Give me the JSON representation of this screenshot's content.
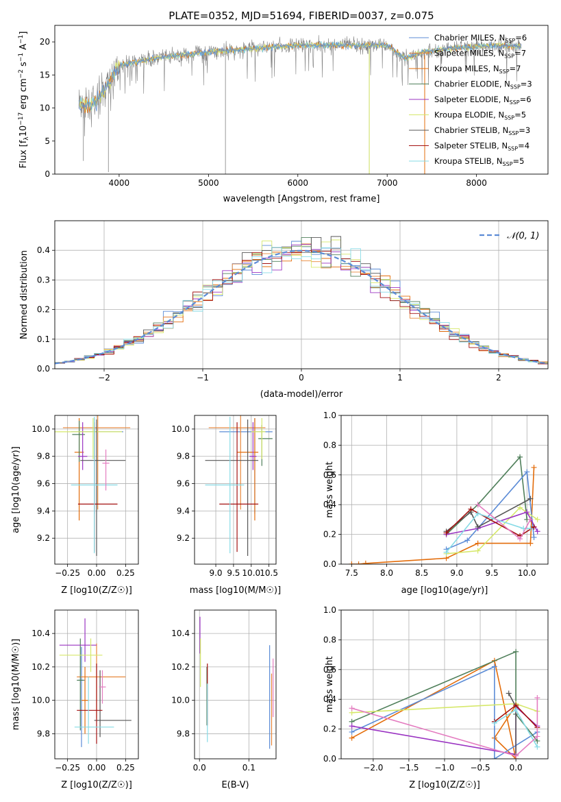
{
  "title": "PLATE=0352, MJD=51694, FIBERID=0037, z=0.075",
  "colors": {
    "Chabrier MILES": "#5b8bd6",
    "Salpeter MILES": "#e8873a",
    "Kroupa MILES": "#e36c0a",
    "Chabrier ELODIE": "#4f7f5a",
    "Salpeter ELODIE": "#9a33c2",
    "Kroupa ELODIE": "#d6e86a",
    "Chabrier STELIB": "#555555",
    "Salpeter STELIB": "#a31010",
    "Kroupa STELIB": "#86dbe6",
    "data": "#808080",
    "pink": "#e47cc0"
  },
  "chart_data": [
    {
      "id": "spectrum",
      "type": "line",
      "xlabel": "wavelength [Angstrom, rest frame]",
      "ylabel": "Flux [f_λ 10^-17 erg cm^-2 s^-1 A^-1]",
      "xlim": [
        3280,
        8800
      ],
      "ylim": [
        0,
        22.5
      ],
      "xticks": [
        4000,
        5000,
        6000,
        7000,
        8000
      ],
      "yticks": [
        0,
        5,
        10,
        15,
        20
      ],
      "legend_position": "right",
      "legend": [
        {
          "name": "Chabrier MILES",
          "nssp": "6"
        },
        {
          "name": "Salpeter MILES",
          "nssp": "7"
        },
        {
          "name": "Kroupa MILES",
          "nssp": "7"
        },
        {
          "name": "Chabrier ELODIE",
          "nssp": "3"
        },
        {
          "name": "Salpeter ELODIE",
          "nssp": "6"
        },
        {
          "name": "Kroupa ELODIE",
          "nssp": "5"
        },
        {
          "name": "Chabrier STELIB",
          "nssp": "3"
        },
        {
          "name": "Salpeter STELIB",
          "nssp": "4"
        },
        {
          "name": "Kroupa STELIB",
          "nssp": "5"
        }
      ],
      "continuum": [
        [
          3550,
          10.5
        ],
        [
          3700,
          10.5
        ],
        [
          3850,
          13
        ],
        [
          4000,
          16.5
        ],
        [
          4200,
          17
        ],
        [
          4400,
          17.5
        ],
        [
          4700,
          18
        ],
        [
          5000,
          18.5
        ],
        [
          5500,
          19
        ],
        [
          6000,
          19.5
        ],
        [
          6500,
          19.5
        ],
        [
          7000,
          19.5
        ],
        [
          7200,
          17.5
        ],
        [
          7400,
          18.5
        ],
        [
          7700,
          19
        ],
        [
          8200,
          19.5
        ],
        [
          8500,
          19.3
        ]
      ],
      "spikes": [
        [
          5190,
          0
        ],
        [
          6800,
          0
        ],
        [
          7420,
          0
        ],
        [
          3880,
          0.3
        ],
        [
          3600,
          2
        ]
      ]
    },
    {
      "id": "residuals",
      "type": "histogram",
      "xlabel": "(data-model)/error",
      "ylabel": "Normed distribution",
      "xlim": [
        -2.5,
        2.5
      ],
      "ylim": [
        0,
        0.5
      ],
      "xticks": [
        -2,
        -1,
        0,
        1,
        2
      ],
      "yticks": [
        0.0,
        0.1,
        0.2,
        0.3,
        0.4
      ],
      "legend_position": "top-right",
      "gaussian_label": "N(0,1)",
      "bin_width": 0.1
    },
    {
      "id": "age-vs-Z",
      "type": "errorbar",
      "xlabel": "Z [log10(Z/Z☉)]",
      "ylabel": "age [log10(age/yr)]",
      "xlim": [
        -0.36,
        0.36
      ],
      "ylim": [
        9.01,
        10.1
      ],
      "xticks": [
        -0.25,
        0.0,
        0.25
      ],
      "yticks": [
        9.2,
        9.4,
        9.6,
        9.8,
        10.0
      ],
      "points": [
        {
          "series": "Chabrier MILES",
          "x": -0.02,
          "y": 9.98,
          "xerr": [
            0.2,
            0.25
          ],
          "yerr": [
            0.6,
            0.1
          ]
        },
        {
          "series": "Salpeter MILES",
          "x": 0.01,
          "y": 10.01,
          "xerr": [
            0.3,
            0.28
          ],
          "yerr": [
            0.6,
            0.1
          ]
        },
        {
          "series": "Kroupa MILES",
          "x": -0.15,
          "y": 9.83,
          "xerr": [
            0.04,
            0.04
          ],
          "yerr": [
            0.5,
            0.25
          ]
        },
        {
          "series": "Chabrier ELODIE",
          "x": -0.15,
          "y": 9.96,
          "xerr": [
            0.06,
            0.05
          ],
          "yerr": [
            0.2,
            0.1
          ]
        },
        {
          "series": "Salpeter ELODIE",
          "x": -0.12,
          "y": 9.8,
          "xerr": [
            0.04,
            0.04
          ],
          "yerr": [
            0.1,
            0.25
          ]
        },
        {
          "series": "Kroupa ELODIE",
          "x": -0.03,
          "y": 9.98,
          "xerr": [
            0.36,
            0.25
          ],
          "yerr": [
            0.2,
            0.1
          ]
        },
        {
          "series": "Chabrier STELIB",
          "x": 0.0,
          "y": 9.77,
          "xerr": [
            0.14,
            0.25
          ],
          "yerr": [
            0.7,
            0.3
          ]
        },
        {
          "series": "Salpeter STELIB",
          "x": -0.02,
          "y": 9.45,
          "xerr": [
            0.14,
            0.2
          ],
          "yerr": [
            0.35,
            0.6
          ]
        },
        {
          "series": "Kroupa STELIB",
          "x": -0.02,
          "y": 9.59,
          "xerr": [
            0.2,
            0.2
          ],
          "yerr": [
            0.5,
            0.5
          ]
        },
        {
          "series": "pink",
          "x": 0.08,
          "y": 9.75,
          "xerr": [
            0.03,
            0.03
          ],
          "yerr": [
            0.2,
            0.1
          ]
        }
      ]
    },
    {
      "id": "age-vs-mass",
      "type": "errorbar",
      "xlabel": "mass [log10(M/M☉)]",
      "ylabel": "",
      "xlim": [
        8.4,
        10.7
      ],
      "ylim": [
        9.01,
        10.1
      ],
      "xticks": [
        9.0,
        9.5,
        10.0,
        10.5
      ],
      "yticks": [
        9.2,
        9.4,
        9.6,
        9.8,
        10.0
      ],
      "points": [
        {
          "series": "Chabrier MILES",
          "x": 10.1,
          "y": 9.98,
          "xerr": [
            1.0,
            0.5
          ],
          "yerr": [
            0.6,
            0.1
          ]
        },
        {
          "series": "Salpeter MILES",
          "x": 9.7,
          "y": 10.01,
          "xerr": [
            0.9,
            0.7
          ],
          "yerr": [
            0.6,
            0.1
          ]
        },
        {
          "series": "Kroupa MILES",
          "x": 10.1,
          "y": 9.83,
          "xerr": [
            0.5,
            0.1
          ],
          "yerr": [
            0.5,
            0.25
          ]
        },
        {
          "series": "Chabrier ELODIE",
          "x": 10.3,
          "y": 9.93,
          "xerr": [
            0.1,
            0.3
          ],
          "yerr": [
            0.2,
            0.1
          ]
        },
        {
          "series": "Salpeter ELODIE",
          "x": 10.05,
          "y": 9.8,
          "xerr": [
            0.1,
            0.1
          ],
          "yerr": [
            0.1,
            0.25
          ]
        },
        {
          "series": "Kroupa ELODIE",
          "x": 10.3,
          "y": 9.98,
          "xerr": [
            0.3,
            0.1
          ],
          "yerr": [
            0.2,
            0.1
          ]
        },
        {
          "series": "Chabrier STELIB",
          "x": 9.9,
          "y": 9.77,
          "xerr": [
            1.2,
            0.3
          ],
          "yerr": [
            0.7,
            0.3
          ]
        },
        {
          "series": "Salpeter STELIB",
          "x": 9.6,
          "y": 9.45,
          "xerr": [
            0.5,
            0.6
          ],
          "yerr": [
            0.35,
            0.6
          ]
        },
        {
          "series": "Kroupa STELIB",
          "x": 9.4,
          "y": 9.59,
          "xerr": [
            0.7,
            0.4
          ],
          "yerr": [
            0.5,
            0.5
          ]
        }
      ]
    },
    {
      "id": "weight-vs-age",
      "type": "line",
      "xlabel": "age [log10(age/yr)]",
      "ylabel": "mass weight",
      "xlim": [
        7.35,
        10.3
      ],
      "ylim": [
        0,
        1
      ],
      "xticks": [
        7.5,
        8.0,
        8.5,
        9.0,
        9.5,
        10.0
      ],
      "yticks": [
        0.0,
        0.2,
        0.4,
        0.6,
        0.8,
        1.0
      ],
      "series": [
        {
          "name": "Kroupa MILES",
          "x": [
            7.5,
            7.6,
            7.7,
            8.85,
            9.3,
            10.05,
            10.1
          ],
          "y": [
            0.0,
            0.0,
            0.005,
            0.04,
            0.14,
            0.14,
            0.65
          ]
        },
        {
          "name": "Chabrier ELODIE",
          "x": [
            8.85,
            9.3,
            9.9,
            10.0
          ],
          "y": [
            0.2,
            0.4,
            0.72,
            0.3
          ]
        },
        {
          "name": "Chabrier MILES",
          "x": [
            8.85,
            9.15,
            10.0,
            10.1
          ],
          "y": [
            0.1,
            0.16,
            0.62,
            0.18
          ]
        },
        {
          "name": "Kroupa ELODIE",
          "x": [
            8.85,
            9.3,
            9.9,
            10.15
          ],
          "y": [
            0.07,
            0.09,
            0.38,
            0.3
          ]
        },
        {
          "name": "Salpeter ELODIE",
          "x": [
            8.85,
            9.3,
            10.0,
            10.15
          ],
          "y": [
            0.2,
            0.24,
            0.35,
            0.22
          ]
        },
        {
          "name": "Chabrier STELIB",
          "x": [
            8.85,
            9.2,
            9.3,
            10.05
          ],
          "y": [
            0.22,
            0.35,
            0.25,
            0.44
          ]
        },
        {
          "name": "Salpeter STELIB",
          "x": [
            8.85,
            9.2,
            9.9,
            10.1
          ],
          "y": [
            0.21,
            0.37,
            0.19,
            0.25
          ]
        },
        {
          "name": "Kroupa STELIB",
          "x": [
            8.85,
            9.3,
            9.95,
            10.05
          ],
          "y": [
            0.08,
            0.34,
            0.24,
            0.24
          ]
        },
        {
          "name": "pink",
          "x": [
            9.3,
            9.9,
            10.05
          ],
          "y": [
            0.4,
            0.17,
            0.3
          ]
        }
      ]
    },
    {
      "id": "mass-vs-Z",
      "type": "errorbar",
      "xlabel": "Z [log10(Z/Z☉)]",
      "ylabel": "mass [log10(M/M☉)]",
      "xlim": [
        -0.36,
        0.36
      ],
      "ylim": [
        9.65,
        10.54
      ],
      "xticks": [
        -0.25,
        0.0,
        0.25
      ],
      "yticks": [
        9.8,
        10.0,
        10.2,
        10.4
      ],
      "points": [
        {
          "series": "Chabrier MILES",
          "x": -0.13,
          "y": 10.12,
          "xerr": [
            0.03,
            0.03
          ],
          "yerr": [
            0.4,
            0.2
          ]
        },
        {
          "series": "Salpeter MILES",
          "x": 0.0,
          "y": 10.14,
          "xerr": [
            0.17,
            0.25
          ],
          "yerr": [
            0.25,
            0.2
          ]
        },
        {
          "series": "Kroupa MILES",
          "x": -0.1,
          "y": 10.0,
          "xerr": [
            0.03,
            0.03
          ],
          "yerr": [
            0.2,
            0.2
          ]
        },
        {
          "series": "Chabrier ELODIE",
          "x": -0.14,
          "y": 10.12,
          "xerr": [
            0.03,
            0.03
          ],
          "yerr": [
            0.3,
            0.25
          ]
        },
        {
          "series": "Salpeter ELODIE",
          "x": -0.1,
          "y": 10.33,
          "xerr": [
            0.22,
            0.1
          ],
          "yerr": [
            0.1,
            0.16
          ]
        },
        {
          "series": "Kroupa ELODIE",
          "x": -0.05,
          "y": 10.27,
          "xerr": [
            0.27,
            0.1
          ],
          "yerr": [
            0.1,
            0.1
          ]
        },
        {
          "series": "Chabrier STELIB",
          "x": 0.03,
          "y": 9.88,
          "xerr": [
            0.05,
            0.27
          ],
          "yerr": [
            0.1,
            0.3
          ]
        },
        {
          "series": "Salpeter STELIB",
          "x": 0.0,
          "y": 9.94,
          "xerr": [
            0.17,
            0.05
          ],
          "yerr": [
            0.2,
            0.28
          ]
        },
        {
          "series": "Kroupa STELIB",
          "x": -0.07,
          "y": 9.84,
          "xerr": [
            0.12,
            0.22
          ],
          "yerr": [
            0.1,
            0.3
          ]
        },
        {
          "series": "pink",
          "x": 0.05,
          "y": 10.08,
          "xerr": [
            0.03,
            0.03
          ],
          "yerr": [
            0.1,
            0.1
          ]
        }
      ]
    },
    {
      "id": "mass-vs-EBV",
      "type": "errorbar",
      "xlabel": "E(B-V)",
      "ylabel": "",
      "xlim": [
        -0.01,
        0.155
      ],
      "ylim": [
        9.65,
        10.54
      ],
      "xticks": [
        0.0,
        0.1
      ],
      "yticks": [
        9.8,
        10.0,
        10.2,
        10.4
      ],
      "points": [
        {
          "series": "Salpeter ELODIE",
          "x": 0.001,
          "y": 10.38,
          "yerr": [
            0.1,
            0.12
          ]
        },
        {
          "series": "Kroupa ELODIE",
          "x": 0.002,
          "y": 10.25,
          "yerr": [
            0.17,
            0.12
          ]
        },
        {
          "series": "Chabrier ELODIE",
          "x": 0.015,
          "y": 10.1,
          "yerr": [
            0.25,
            0.1
          ]
        },
        {
          "series": "Salpeter STELIB",
          "x": 0.016,
          "y": 10.05,
          "yerr": [
            0.2,
            0.17
          ]
        },
        {
          "series": "Kroupa STELIB",
          "x": 0.016,
          "y": 9.95,
          "yerr": [
            0.2,
            0.15
          ]
        },
        {
          "series": "Chabrier MILES",
          "x": 0.142,
          "y": 10.0,
          "yerr": [
            0.29,
            0.33
          ]
        },
        {
          "series": "Salpeter MILES",
          "x": 0.146,
          "y": 9.96,
          "yerr": [
            0.23,
            0.2
          ]
        },
        {
          "series": "pink",
          "x": 0.149,
          "y": 10.07,
          "yerr": [
            0.17,
            0.18
          ]
        }
      ]
    },
    {
      "id": "weight-vs-Z",
      "type": "line",
      "xlabel": "Z [log10(Z/Z☉)]",
      "ylabel": "mass weight",
      "xlim": [
        -2.45,
        0.45
      ],
      "ylim": [
        0,
        1
      ],
      "xticks": [
        -2.0,
        -1.5,
        -1.0,
        -0.5,
        0.0
      ],
      "yticks": [
        0.0,
        0.2,
        0.4,
        0.6,
        0.8,
        1.0
      ],
      "series": [
        {
          "name": "Kroupa MILES",
          "x": [
            -2.3,
            -0.3,
            0.0,
            -0.3,
            0.0
          ],
          "y": [
            0.14,
            0.66,
            0.0,
            0.14,
            0.36
          ]
        },
        {
          "name": "Chabrier MILES",
          "x": [
            -2.3,
            -0.3,
            -0.3,
            0.3
          ],
          "y": [
            0.18,
            0.62,
            0.0,
            0.18
          ]
        },
        {
          "name": "Chabrier ELODIE",
          "x": [
            -2.3,
            0.0,
            0.0,
            0.3
          ],
          "y": [
            0.25,
            0.72,
            0.3,
            0.12
          ]
        },
        {
          "name": "Kroupa ELODIE",
          "x": [
            -2.3,
            0.0,
            0.3
          ],
          "y": [
            0.31,
            0.37,
            0.32
          ]
        },
        {
          "name": "Salpeter ELODIE",
          "x": [
            -2.3,
            0.0,
            0.0,
            0.3
          ],
          "y": [
            0.22,
            0.03,
            0.35,
            0.22
          ]
        },
        {
          "name": "Chabrier STELIB",
          "x": [
            -0.1,
            0.0,
            0.0
          ],
          "y": [
            0.44,
            0.35,
            0.03
          ]
        },
        {
          "name": "Salpeter STELIB",
          "x": [
            -0.3,
            0.0,
            0.3
          ],
          "y": [
            0.25,
            0.36,
            0.21
          ]
        },
        {
          "name": "Kroupa STELIB",
          "x": [
            -0.3,
            0.0,
            0.3
          ],
          "y": [
            0.24,
            0.33,
            0.08
          ]
        },
        {
          "name": "pink",
          "x": [
            -2.3,
            0.0,
            0.3,
            0.3
          ],
          "y": [
            0.34,
            0.02,
            0.15,
            0.41
          ]
        }
      ]
    }
  ]
}
